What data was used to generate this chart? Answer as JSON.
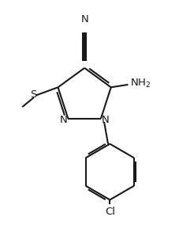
{
  "bg_color": "#ffffff",
  "line_color": "#1a1a1a",
  "line_width": 1.5,
  "figsize": [
    2.28,
    2.88
  ],
  "dpi": 100,
  "xlim": [
    0.0,
    1.0
  ],
  "ylim": [
    0.0,
    1.0
  ]
}
